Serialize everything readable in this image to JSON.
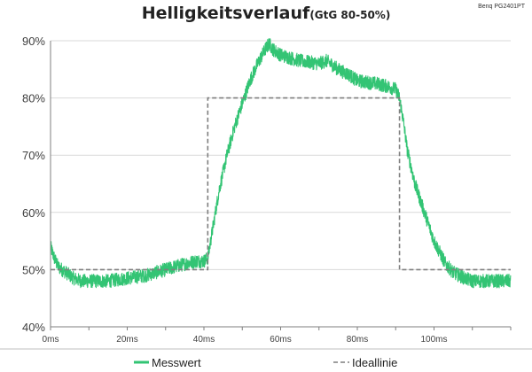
{
  "header": {
    "title": "Helligkeitsverlauf",
    "subtitle": "(GtG 80-50%)",
    "device": "Benq PG2401PT"
  },
  "colors": {
    "measured": "#33c474",
    "ideal": "#7f7f7f",
    "grid": "#d9d9d9",
    "axis": "#7f7f7f"
  },
  "chart_data": {
    "type": "line",
    "title": "Helligkeitsverlauf (GtG 80-50%)",
    "xlabel": "",
    "ylabel": "",
    "x_unit": "ms",
    "xlim": [
      0,
      120
    ],
    "ylim": [
      40,
      90
    ],
    "x_ticks": [
      0,
      20,
      40,
      60,
      80,
      100
    ],
    "x_tick_labels": [
      "0ms",
      "20ms",
      "40ms",
      "60ms",
      "80ms",
      "100ms"
    ],
    "y_ticks": [
      40,
      50,
      60,
      70,
      80,
      90
    ],
    "y_tick_labels": [
      "40%",
      "50%",
      "60%",
      "70%",
      "80%",
      "90%"
    ],
    "grid": "horizontal",
    "legend_position": "bottom",
    "series": [
      {
        "name": "Messwert",
        "style": "solid-noisy",
        "x": [
          0,
          1,
          2,
          4,
          6,
          8,
          10,
          15,
          20,
          25,
          30,
          35,
          38,
          40,
          41,
          42,
          44,
          46,
          48,
          50,
          52,
          54,
          56,
          57,
          58,
          60,
          65,
          70,
          72,
          75,
          78,
          80,
          85,
          88,
          90,
          91,
          92,
          93,
          95,
          98,
          100,
          103,
          105,
          108,
          110,
          115,
          120
        ],
        "values": [
          54,
          52,
          50.5,
          49.5,
          48.5,
          48,
          48,
          48,
          48.5,
          49,
          50,
          51,
          51.5,
          51.5,
          52,
          56,
          64,
          70,
          75,
          79,
          83,
          86,
          88.5,
          89.5,
          88.5,
          87.5,
          86.5,
          86,
          86.5,
          85,
          84,
          83,
          82.5,
          82,
          81.5,
          80,
          76,
          71,
          65,
          59,
          55,
          51,
          49.5,
          48.5,
          48,
          48,
          48
        ],
        "noise": 1.2
      },
      {
        "name": "Ideallinie",
        "style": "dashed",
        "x": [
          0,
          41,
          41,
          91,
          91,
          120
        ],
        "values": [
          50,
          50,
          80,
          80,
          50,
          50
        ]
      }
    ]
  }
}
